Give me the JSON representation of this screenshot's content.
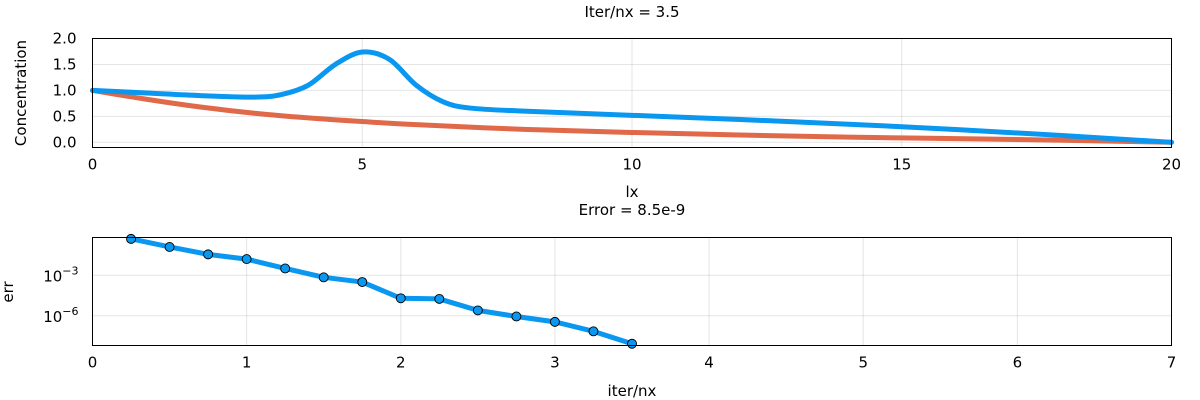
{
  "chart_data": [
    {
      "type": "line",
      "title": "Iter/nx = 3.5",
      "xlabel": "lx",
      "ylabel": "Concentration",
      "xlim": [
        0,
        20
      ],
      "ylim": [
        -0.1,
        2.0
      ],
      "xticks": [
        0,
        5,
        10,
        15,
        20
      ],
      "xtick_labels": [
        "0",
        "5",
        "10",
        "15",
        "20"
      ],
      "yticks": [
        0.0,
        0.5,
        1.0,
        1.5,
        2.0
      ],
      "ytick_labels": [
        "0.0",
        "0.5",
        "1.0",
        "1.5",
        "2.0"
      ],
      "grid": true,
      "series": [
        {
          "color": "#0997f0",
          "x": [
            0,
            1,
            2,
            3,
            3.5,
            4,
            4.5,
            5,
            5.5,
            6,
            6.5,
            7,
            8,
            10,
            12,
            15,
            18,
            20
          ],
          "values": [
            1.0,
            0.95,
            0.9,
            0.87,
            0.92,
            1.1,
            1.5,
            1.74,
            1.6,
            1.1,
            0.78,
            0.66,
            0.6,
            0.52,
            0.44,
            0.3,
            0.13,
            0.0
          ]
        },
        {
          "color": "#e0694a",
          "x": [
            0,
            1,
            2,
            3,
            4,
            5,
            6,
            8,
            10,
            12,
            14,
            16,
            18,
            20
          ],
          "values": [
            1.0,
            0.83,
            0.68,
            0.56,
            0.47,
            0.4,
            0.34,
            0.25,
            0.19,
            0.14,
            0.1,
            0.07,
            0.04,
            0.0
          ]
        }
      ]
    },
    {
      "type": "line",
      "title": "Error = 8.5e-9",
      "xlabel": "iter/nx",
      "ylabel": "err",
      "yscale": "log",
      "xlim": [
        0,
        7
      ],
      "ylim_log10": [
        -8.2,
        -0.2
      ],
      "xticks": [
        0,
        1,
        2,
        3,
        4,
        5,
        6,
        7
      ],
      "xtick_labels": [
        "0",
        "1",
        "2",
        "3",
        "4",
        "5",
        "6",
        "7"
      ],
      "yticks_log10": [
        -3,
        -6
      ],
      "ytick_bases": [
        "10",
        "10"
      ],
      "ytick_exponents": [
        "−3",
        "−6"
      ],
      "grid": true,
      "series": [
        {
          "color": "#0997f0",
          "marker": "circle",
          "x": [
            0.25,
            0.5,
            0.75,
            1.0,
            1.25,
            1.5,
            1.75,
            2.0,
            2.25,
            2.5,
            2.75,
            3.0,
            3.25,
            3.5
          ],
          "values": [
            0.5,
            0.1259,
            0.0355,
            0.01585,
            0.0032,
            0.000708,
            0.000316,
            1.99e-05,
            1.78e-05,
            2.51e-06,
            8.91e-07,
            3.55e-07,
            7.08e-08,
            8.5e-09
          ]
        }
      ]
    }
  ]
}
